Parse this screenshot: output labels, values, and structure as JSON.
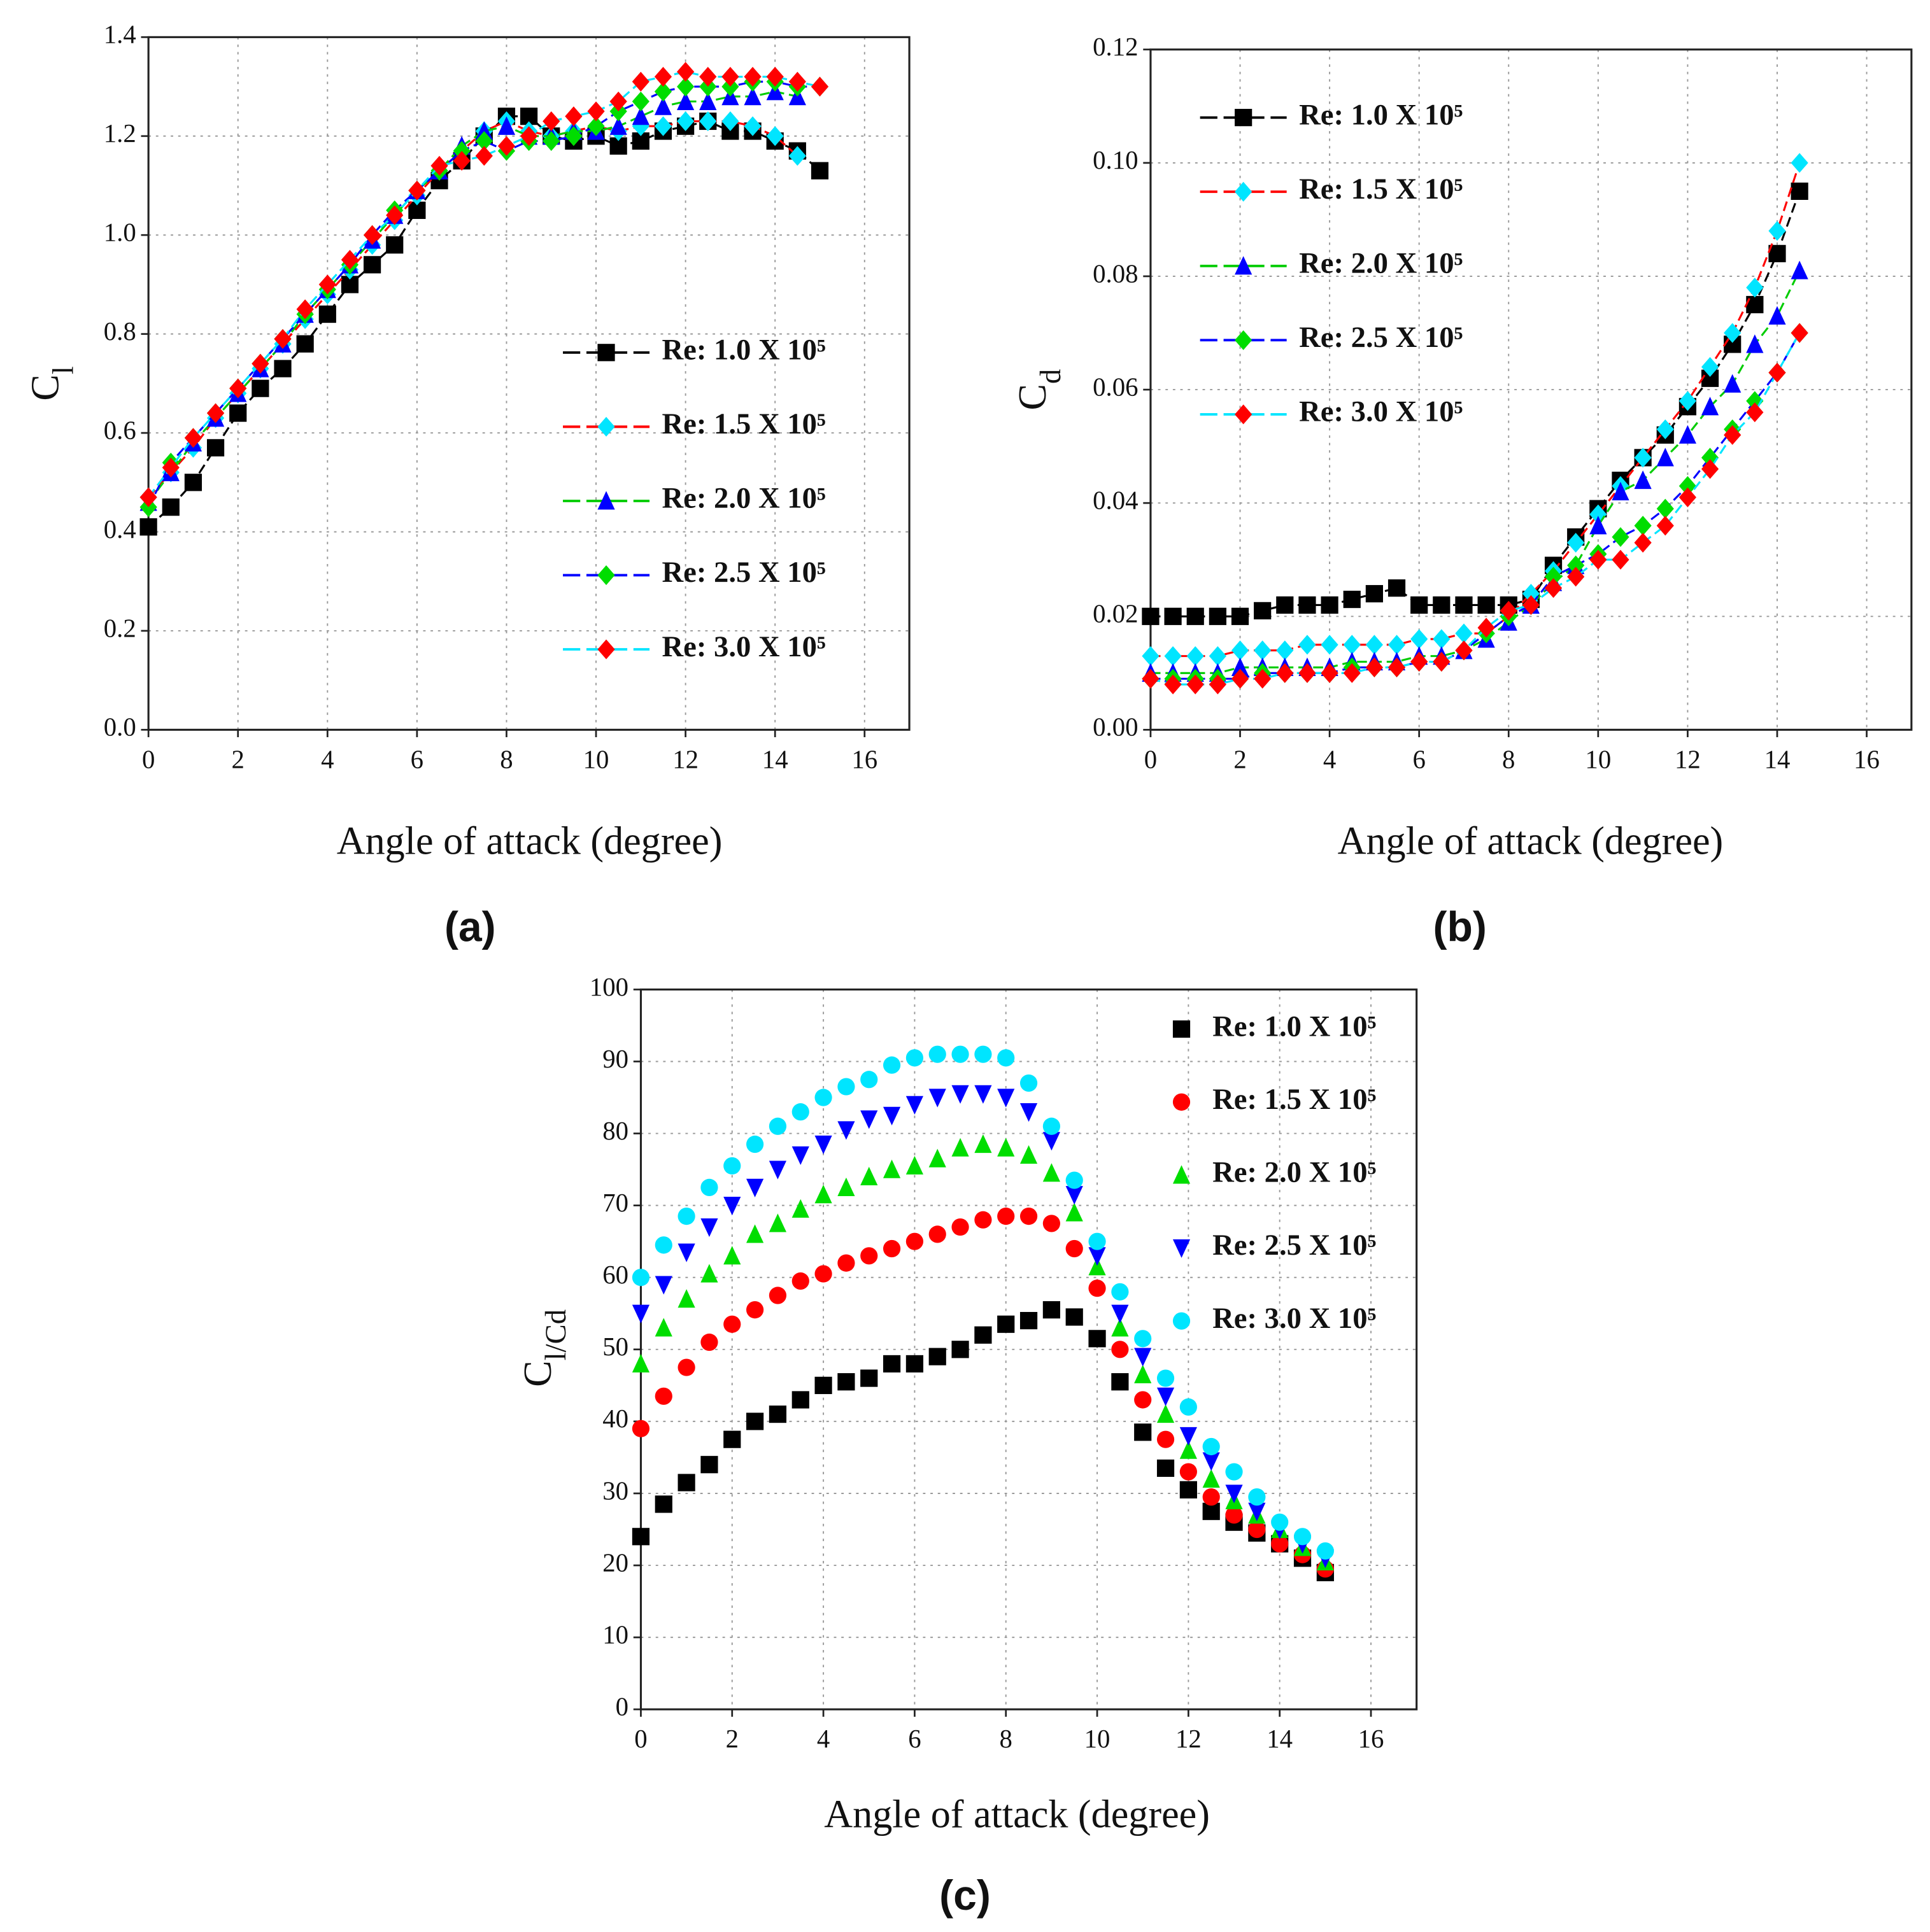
{
  "chart_data": [
    {
      "type": "line",
      "caption": "(a)",
      "xlabel": "Angle of attack (degree)",
      "ylabel": [
        {
          "text": "C"
        },
        {
          "text": "l",
          "sub": true
        }
      ],
      "xlim": [
        0,
        17
      ],
      "xticks": [
        0,
        2,
        4,
        6,
        8,
        10,
        12,
        14,
        16
      ],
      "ylim": [
        0,
        1.4
      ],
      "yticks": [
        {
          "value": 0,
          "label": "0.0"
        },
        0.2,
        0.4,
        0.6,
        0.8,
        {
          "value": 1,
          "label": "1.0"
        },
        1.2,
        1.4
      ],
      "grid": true,
      "legend": "center right",
      "x": [
        0,
        0.5,
        1,
        1.5,
        2,
        2.5,
        3,
        3.5,
        4,
        4.5,
        5,
        5.5,
        6,
        6.5,
        7,
        7.5,
        8,
        8.5,
        9,
        9.5,
        10,
        10.5,
        11,
        11.5,
        12,
        12.5,
        13,
        13.5,
        14,
        14.5,
        15
      ],
      "series": [
        {
          "name": "Re: 1.0 X 10⁵",
          "color": "#000000",
          "line_color": "#000000",
          "marker": "square",
          "values": [
            0.41,
            0.45,
            0.5,
            0.57,
            0.64,
            0.69,
            0.73,
            0.78,
            0.84,
            0.9,
            0.94,
            0.98,
            1.05,
            1.11,
            1.15,
            1.2,
            1.24,
            1.24,
            1.2,
            1.19,
            1.2,
            1.18,
            1.19,
            1.21,
            1.22,
            1.23,
            1.21,
            1.21,
            1.19,
            1.17,
            1.13
          ]
        },
        {
          "name": "Re: 1.5 X 10⁵",
          "color": "#00e5ff",
          "line_color": "#ff0000",
          "marker": "diamond",
          "values": [
            0.47,
            0.52,
            0.57,
            0.63,
            0.68,
            0.73,
            0.78,
            0.83,
            0.88,
            0.93,
            0.98,
            1.03,
            1.08,
            1.13,
            1.17,
            1.21,
            1.23,
            1.21,
            1.2,
            1.21,
            1.22,
            1.21,
            1.22,
            1.22,
            1.23,
            1.23,
            1.23,
            1.22,
            1.2,
            1.16,
            null
          ]
        },
        {
          "name": "Re: 2.0 X 10⁵",
          "color": "#0000ff",
          "line_color": "#00cc00",
          "marker": "triangle",
          "values": [
            0.46,
            0.52,
            0.58,
            0.63,
            0.68,
            0.73,
            0.78,
            0.84,
            0.89,
            0.94,
            0.99,
            1.04,
            1.09,
            1.13,
            1.18,
            1.21,
            1.22,
            1.2,
            1.2,
            1.21,
            1.21,
            1.22,
            1.24,
            1.26,
            1.27,
            1.27,
            1.28,
            1.28,
            1.29,
            1.28,
            null
          ]
        },
        {
          "name": "Re: 2.5 X 10⁵",
          "color": "#00dd00",
          "line_color": "#0000ff",
          "marker": "diamond",
          "values": [
            0.45,
            0.54,
            0.59,
            0.64,
            0.69,
            0.74,
            0.79,
            0.84,
            0.89,
            0.94,
            1.0,
            1.05,
            1.09,
            1.13,
            1.17,
            1.19,
            1.17,
            1.19,
            1.19,
            1.2,
            1.22,
            1.25,
            1.27,
            1.29,
            1.3,
            1.3,
            1.3,
            1.31,
            1.31,
            1.3,
            1.3
          ]
        },
        {
          "name": "Re: 3.0 X 10⁵",
          "color": "#ff0000",
          "line_color": "#00e5ff",
          "marker": "diamond",
          "values": [
            0.47,
            0.53,
            0.59,
            0.64,
            0.69,
            0.74,
            0.79,
            0.85,
            0.9,
            0.95,
            1.0,
            1.04,
            1.09,
            1.14,
            1.15,
            1.16,
            1.18,
            1.2,
            1.23,
            1.24,
            1.25,
            1.27,
            1.31,
            1.32,
            1.33,
            1.32,
            1.32,
            1.32,
            1.32,
            1.31,
            1.3
          ]
        }
      ]
    },
    {
      "type": "line",
      "caption": "(b)",
      "xlabel": "Angle of attack (degree)",
      "ylabel": [
        {
          "text": "C"
        },
        {
          "text": "d",
          "sub": true
        }
      ],
      "xlim": [
        0,
        17
      ],
      "xticks": [
        0,
        2,
        4,
        6,
        8,
        10,
        12,
        14,
        16
      ],
      "ylim": [
        0,
        0.12
      ],
      "yticks": [
        {
          "value": 0,
          "label": "0.00"
        },
        {
          "value": 0.02,
          "label": "0.02"
        },
        {
          "value": 0.04,
          "label": "0.04"
        },
        {
          "value": 0.06,
          "label": "0.06"
        },
        {
          "value": 0.08,
          "label": "0.08"
        },
        {
          "value": 0.1,
          "label": "0.10"
        },
        {
          "value": 0.12,
          "label": "0.12"
        }
      ],
      "grid": true,
      "legend": "upper left",
      "x": [
        0,
        0.5,
        1,
        1.5,
        2,
        2.5,
        3,
        3.5,
        4,
        4.5,
        5,
        5.5,
        6,
        6.5,
        7,
        7.5,
        8,
        8.5,
        9,
        9.5,
        10,
        10.5,
        11,
        11.5,
        12,
        12.5,
        13,
        13.5,
        14,
        14.5
      ],
      "series": [
        {
          "name": "Re: 1.0 X 10⁵",
          "color": "#000000",
          "line_color": "#000000",
          "marker": "square",
          "values": [
            0.02,
            0.02,
            0.02,
            0.02,
            0.02,
            0.021,
            0.022,
            0.022,
            0.022,
            0.023,
            0.024,
            0.025,
            0.022,
            0.022,
            0.022,
            0.022,
            0.022,
            0.023,
            0.029,
            0.034,
            0.039,
            0.044,
            0.048,
            0.052,
            0.057,
            0.062,
            0.068,
            0.075,
            0.084,
            0.095
          ]
        },
        {
          "name": "Re: 1.5 X 10⁵",
          "color": "#00e5ff",
          "line_color": "#ff0000",
          "marker": "diamond",
          "values": [
            0.013,
            0.013,
            0.013,
            0.013,
            0.014,
            0.014,
            0.014,
            0.015,
            0.015,
            0.015,
            0.015,
            0.015,
            0.016,
            0.016,
            0.017,
            0.017,
            0.02,
            0.024,
            0.028,
            0.033,
            0.038,
            0.043,
            0.048,
            0.053,
            0.058,
            0.064,
            0.07,
            0.078,
            0.088,
            0.1
          ]
        },
        {
          "name": "Re: 2.0 X 10⁵",
          "color": "#0000ff",
          "line_color": "#00cc00",
          "marker": "triangle",
          "values": [
            0.01,
            0.01,
            0.01,
            0.01,
            0.011,
            0.011,
            0.011,
            0.011,
            0.011,
            0.012,
            0.012,
            0.012,
            0.013,
            0.013,
            0.014,
            0.016,
            0.019,
            0.022,
            0.026,
            0.029,
            0.036,
            0.042,
            0.044,
            0.048,
            0.052,
            0.057,
            0.061,
            0.068,
            0.073,
            0.081
          ]
        },
        {
          "name": "Re: 2.5 X 10⁵",
          "color": "#00dd00",
          "line_color": "#0000ff",
          "marker": "diamond",
          "values": [
            0.009,
            0.009,
            0.009,
            0.009,
            0.009,
            0.01,
            0.01,
            0.01,
            0.01,
            0.011,
            0.011,
            0.011,
            0.012,
            0.012,
            0.014,
            0.017,
            0.02,
            0.022,
            0.027,
            0.029,
            0.031,
            0.034,
            0.036,
            0.039,
            0.043,
            0.048,
            0.053,
            0.058,
            0.063,
            0.07
          ]
        },
        {
          "name": "Re: 3.0 X 10⁵",
          "color": "#ff0000",
          "line_color": "#00e5ff",
          "marker": "diamond",
          "values": [
            0.009,
            0.008,
            0.008,
            0.008,
            0.009,
            0.009,
            0.01,
            0.01,
            0.01,
            0.01,
            0.011,
            0.011,
            0.012,
            0.012,
            0.014,
            0.018,
            0.021,
            0.022,
            0.025,
            0.027,
            0.03,
            0.03,
            0.033,
            0.036,
            0.041,
            0.046,
            0.052,
            0.056,
            0.063,
            0.07
          ]
        }
      ]
    },
    {
      "type": "scatter",
      "caption": "(c)",
      "xlabel": "Angle of attack (degree)",
      "ylabel": [
        {
          "text": "C"
        },
        {
          "text": "l/C",
          "sub": true
        },
        {
          "text": "d",
          "sub": true
        }
      ],
      "xlim": [
        0,
        17
      ],
      "xticks": [
        0,
        2,
        4,
        6,
        8,
        10,
        12,
        14,
        16
      ],
      "ylim": [
        0,
        100
      ],
      "yticks": [
        0,
        10,
        20,
        30,
        40,
        50,
        60,
        70,
        80,
        90,
        100
      ],
      "grid": true,
      "legend": "upper right",
      "x": [
        0,
        0.5,
        1,
        1.5,
        2,
        2.5,
        3,
        3.5,
        4,
        4.5,
        5,
        5.5,
        6,
        6.5,
        7,
        7.5,
        8,
        8.5,
        9,
        9.5,
        10,
        10.5,
        11,
        11.5,
        12,
        12.5,
        13,
        13.5,
        14,
        14.5,
        15
      ],
      "series": [
        {
          "name": "Re: 1.0 X 10⁵",
          "color": "#000000",
          "marker": "square",
          "values": [
            24,
            28.5,
            31.5,
            34,
            37.5,
            40,
            41,
            43,
            45,
            45.5,
            46,
            48,
            48,
            49,
            50,
            52,
            53.5,
            54,
            55.5,
            54.5,
            51.5,
            45.5,
            38.5,
            33.5,
            30.5,
            27.5,
            26,
            24.5,
            23,
            21,
            19
          ]
        },
        {
          "name": "Re: 1.5 X 10⁵",
          "color": "#ff0000",
          "marker": "circle",
          "values": [
            39,
            43.5,
            47.5,
            51,
            53.5,
            55.5,
            57.5,
            59.5,
            60.5,
            62,
            63,
            64,
            65,
            66,
            67,
            68,
            68.5,
            68.5,
            67.5,
            64,
            58.5,
            50,
            43,
            37.5,
            33,
            29.5,
            27,
            25,
            23,
            21.5,
            19.5
          ]
        },
        {
          "name": "Re: 2.0 X 10⁵",
          "color": "#00dd00",
          "marker": "triangle",
          "values": [
            48,
            53,
            57,
            60.5,
            63,
            66,
            67.5,
            69.5,
            71.5,
            72.5,
            74,
            75,
            75.5,
            76.5,
            78,
            78.5,
            78,
            77,
            74.5,
            69,
            61.5,
            53,
            46.5,
            41,
            36,
            32,
            29,
            27,
            25,
            22.5,
            20.5
          ]
        },
        {
          "name": "Re: 2.5 X 10⁵",
          "color": "#0000ff",
          "marker": "triangle-down",
          "values": [
            55,
            59,
            63.5,
            67,
            70,
            72.5,
            75,
            77,
            78.5,
            80.5,
            82,
            82.5,
            84,
            85,
            85.5,
            85.5,
            85,
            83,
            79,
            71.5,
            63,
            55,
            49,
            43.5,
            38,
            34.5,
            30,
            27.5,
            25,
            23,
            21
          ]
        },
        {
          "name": "Re: 3.0 X 10⁵",
          "color": "#00e5ff",
          "marker": "circle",
          "values": [
            60,
            64.5,
            68.5,
            72.5,
            75.5,
            78.5,
            81,
            83,
            85,
            86.5,
            87.5,
            89.5,
            90.5,
            91,
            91,
            91,
            90.5,
            87,
            81,
            73.5,
            65,
            58,
            51.5,
            46,
            42,
            36.5,
            33,
            29.5,
            26,
            24,
            22
          ]
        }
      ]
    }
  ]
}
